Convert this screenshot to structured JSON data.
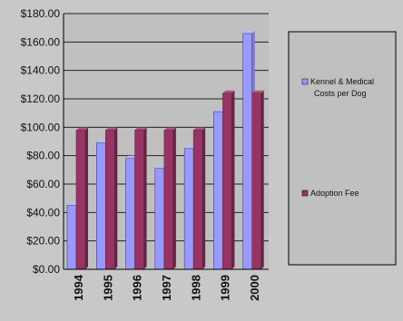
{
  "chart_data": {
    "type": "bar",
    "title": "",
    "xlabel": "",
    "ylabel": "",
    "categories": [
      "1994",
      "1995",
      "1996",
      "1997",
      "1998",
      "1999",
      "2000"
    ],
    "series": [
      {
        "name": "Kennel & Medical Costs per Dog",
        "values": [
          45,
          89,
          78,
          71,
          85,
          111,
          166
        ],
        "color": "#9999ff"
      },
      {
        "name": "Adoption Fee",
        "values": [
          98,
          98,
          98,
          98,
          98,
          124,
          124
        ],
        "color": "#993366"
      }
    ],
    "ylim": [
      0,
      180
    ],
    "yticks": [
      "$0.00",
      "$20.00",
      "$40.00",
      "$60.00",
      "$80.00",
      "$100.00",
      "$120.00",
      "$140.00",
      "$160.00",
      "$180.00"
    ],
    "grid": true,
    "legend_position": "right",
    "plot_background": "#c0c0c0",
    "gridline_color": "#222222"
  }
}
